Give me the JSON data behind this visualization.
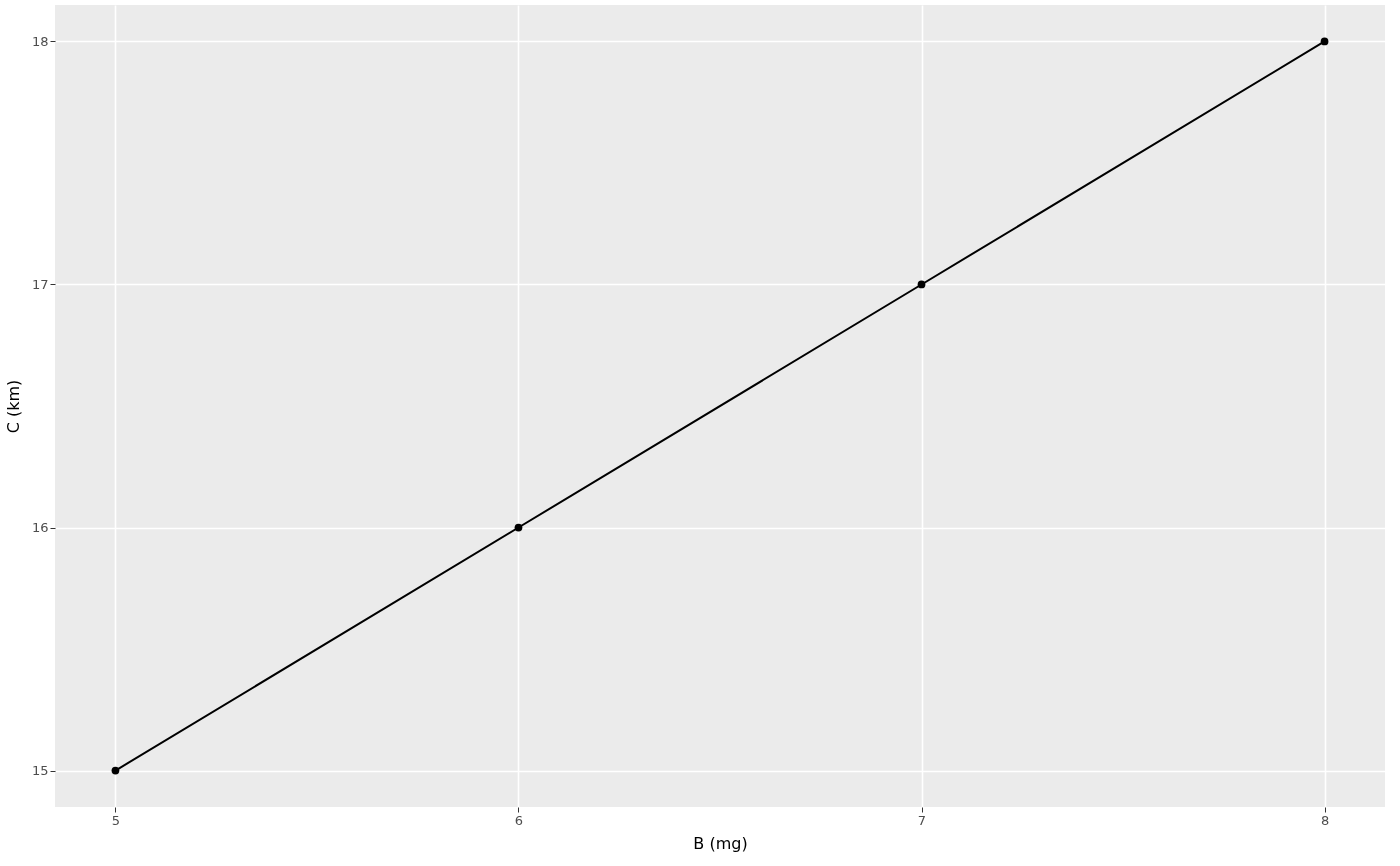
{
  "chart_data": {
    "type": "line",
    "xlabel": "B (mg)",
    "ylabel": "C (km)",
    "x": [
      5,
      6,
      7,
      8
    ],
    "series": [
      {
        "color": "#000000",
        "values": [
          15,
          16,
          17,
          18
        ]
      }
    ],
    "xlim": [
      4.85,
      8.15
    ],
    "ylim": [
      14.85,
      18.15
    ],
    "xticks": [
      5,
      6,
      7,
      8
    ],
    "yticks": [
      15,
      16,
      17,
      18
    ],
    "grid": true,
    "marker": "circle",
    "line_style": "solid"
  }
}
